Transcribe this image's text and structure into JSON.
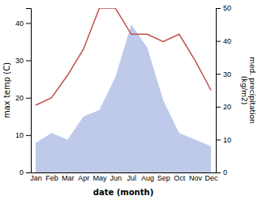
{
  "chart_data": {
    "type": "line",
    "categories": [
      "Jan",
      "Feb",
      "Mar",
      "Apr",
      "May",
      "Jun",
      "Jul",
      "Aug",
      "Sep",
      "Oct",
      "Nov",
      "Dec"
    ],
    "xlabel": "date (month)",
    "ylabel": "max temp (C)",
    "y2label": "med. precipitation\n(kg/m2)",
    "ylim": [
      0,
      44
    ],
    "yticks": [
      0,
      10,
      20,
      30,
      40
    ],
    "y2lim": [
      0,
      50
    ],
    "y2ticks": [
      0,
      10,
      20,
      30,
      40,
      50
    ],
    "series": [
      {
        "type": "area",
        "axis": "y2",
        "color": "#b8c4e8",
        "values": [
          9,
          12,
          10,
          17,
          19,
          29,
          45,
          38,
          22,
          12,
          10,
          8
        ]
      },
      {
        "type": "line",
        "color": "#c0504d",
        "values": [
          18,
          20,
          26,
          33,
          44,
          44,
          37,
          37,
          35,
          37,
          30,
          22
        ]
      }
    ]
  }
}
